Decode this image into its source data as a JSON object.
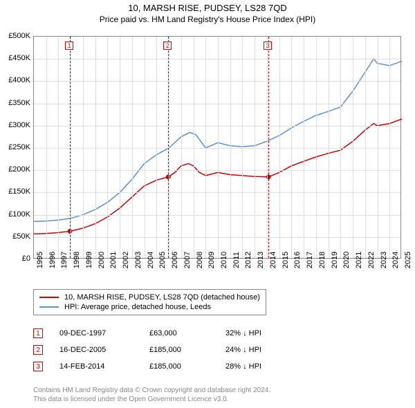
{
  "title": "10, MARSH RISE, PUDSEY, LS28 7QD",
  "subtitle": "Price paid vs. HM Land Registry's House Price Index (HPI)",
  "chart": {
    "type": "line",
    "background_color": "#ffffff",
    "grid_color": "#dddddd",
    "border_color": "#888888",
    "x_years": [
      1995,
      1996,
      1997,
      1998,
      1999,
      2000,
      2001,
      2002,
      2003,
      2004,
      2005,
      2006,
      2007,
      2008,
      2009,
      2010,
      2011,
      2012,
      2013,
      2014,
      2015,
      2016,
      2017,
      2018,
      2019,
      2020,
      2021,
      2022,
      2023,
      2024,
      2025
    ],
    "x_min": 1995,
    "x_max": 2025,
    "y_ticks": [
      0,
      50000,
      100000,
      150000,
      200000,
      250000,
      300000,
      350000,
      400000,
      450000,
      500000
    ],
    "y_tick_labels": [
      "£0",
      "£50K",
      "£100K",
      "£150K",
      "£200K",
      "£250K",
      "£300K",
      "£350K",
      "£400K",
      "£450K",
      "£500K"
    ],
    "y_min": 0,
    "y_max": 500000,
    "y_label_fontsize": 11,
    "x_label_fontsize": 11,
    "sale_line_color": "#cc0000",
    "sale_line_dash": "3,3",
    "series": [
      {
        "name": "price_paid",
        "label": "10, MARSH RISE, PUDSEY, LS28 7QD (detached house)",
        "color": "#cc0000",
        "line_width": 1.5,
        "points": [
          [
            1995.0,
            57000
          ],
          [
            1996.0,
            58000
          ],
          [
            1997.0,
            60000
          ],
          [
            1997.94,
            63000
          ],
          [
            1999.0,
            70000
          ],
          [
            2000.0,
            80000
          ],
          [
            2001.0,
            95000
          ],
          [
            2002.0,
            115000
          ],
          [
            2003.0,
            140000
          ],
          [
            2004.0,
            165000
          ],
          [
            2005.0,
            178000
          ],
          [
            2005.96,
            185000
          ],
          [
            2006.5,
            195000
          ],
          [
            2007.0,
            210000
          ],
          [
            2007.6,
            215000
          ],
          [
            2008.0,
            210000
          ],
          [
            2008.5,
            195000
          ],
          [
            2009.0,
            188000
          ],
          [
            2010.0,
            195000
          ],
          [
            2011.0,
            190000
          ],
          [
            2012.0,
            188000
          ],
          [
            2013.0,
            186000
          ],
          [
            2014.12,
            185000
          ],
          [
            2015.0,
            195000
          ],
          [
            2016.0,
            210000
          ],
          [
            2017.0,
            220000
          ],
          [
            2018.0,
            230000
          ],
          [
            2019.0,
            238000
          ],
          [
            2020.0,
            245000
          ],
          [
            2021.0,
            265000
          ],
          [
            2022.0,
            290000
          ],
          [
            2022.7,
            305000
          ],
          [
            2023.0,
            300000
          ],
          [
            2024.0,
            305000
          ],
          [
            2025.0,
            315000
          ]
        ]
      },
      {
        "name": "hpi",
        "label": "HPI: Average price, detached house, Leeds",
        "color": "#5b8fd6",
        "line_width": 1.5,
        "points": [
          [
            1995.0,
            85000
          ],
          [
            1996.0,
            86000
          ],
          [
            1997.0,
            88000
          ],
          [
            1998.0,
            92000
          ],
          [
            1999.0,
            100000
          ],
          [
            2000.0,
            112000
          ],
          [
            2001.0,
            128000
          ],
          [
            2002.0,
            150000
          ],
          [
            2003.0,
            180000
          ],
          [
            2004.0,
            215000
          ],
          [
            2005.0,
            235000
          ],
          [
            2006.0,
            250000
          ],
          [
            2007.0,
            275000
          ],
          [
            2007.7,
            285000
          ],
          [
            2008.2,
            280000
          ],
          [
            2009.0,
            250000
          ],
          [
            2010.0,
            262000
          ],
          [
            2011.0,
            255000
          ],
          [
            2012.0,
            253000
          ],
          [
            2013.0,
            255000
          ],
          [
            2014.0,
            265000
          ],
          [
            2015.0,
            278000
          ],
          [
            2016.0,
            295000
          ],
          [
            2017.0,
            310000
          ],
          [
            2018.0,
            323000
          ],
          [
            2019.0,
            332000
          ],
          [
            2020.0,
            342000
          ],
          [
            2021.0,
            378000
          ],
          [
            2022.0,
            420000
          ],
          [
            2022.7,
            450000
          ],
          [
            2023.0,
            440000
          ],
          [
            2024.0,
            435000
          ],
          [
            2025.0,
            445000
          ]
        ]
      }
    ],
    "sale_markers": [
      {
        "n": "1",
        "year": 1997.94,
        "price": 63000
      },
      {
        "n": "2",
        "year": 2005.96,
        "price": 185000
      },
      {
        "n": "3",
        "year": 2014.12,
        "price": 185000
      }
    ],
    "marker_radius": 3.5,
    "marker_fill": "#cc0000"
  },
  "legend": {
    "items": [
      {
        "color": "#cc0000",
        "label": "10, MARSH RISE, PUDSEY, LS28 7QD (detached house)"
      },
      {
        "color": "#5b8fd6",
        "label": "HPI: Average price, detached house, Leeds"
      }
    ],
    "fontsize": 11
  },
  "sales_table": {
    "rows": [
      {
        "n": "1",
        "date": "09-DEC-1997",
        "price": "£63,000",
        "delta": "32% ↓ HPI"
      },
      {
        "n": "2",
        "date": "16-DEC-2005",
        "price": "£185,000",
        "delta": "24% ↓ HPI"
      },
      {
        "n": "3",
        "date": "14-FEB-2014",
        "price": "£185,000",
        "delta": "28% ↓ HPI"
      }
    ],
    "fontsize": 11,
    "marker_border_color": "#cc0000",
    "marker_text_color": "#cc0000"
  },
  "attribution": {
    "line1": "Contains HM Land Registry data © Crown copyright and database right 2024.",
    "line2": "This data is licensed under the Open Government Licence v3.0.",
    "color": "#888888",
    "fontsize": 10
  }
}
